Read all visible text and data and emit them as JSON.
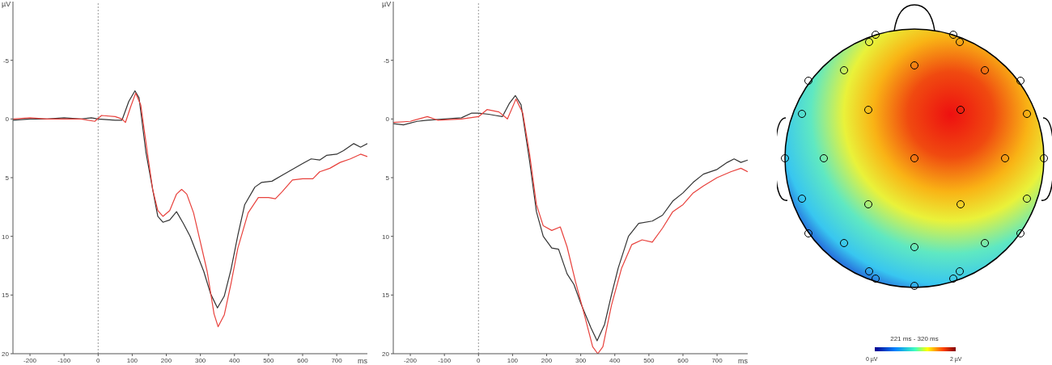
{
  "chart_data": [
    {
      "type": "line",
      "xlabel": "ms",
      "ylabel": "µV",
      "xlim": [
        -250,
        790
      ],
      "ylim": [
        20,
        -10
      ],
      "xticks": [
        -200,
        -100,
        0,
        100,
        200,
        300,
        400,
        500,
        600,
        700
      ],
      "yticks": [
        -5,
        0,
        5,
        10,
        15,
        20
      ],
      "grid": false,
      "legend": false,
      "marker": "none",
      "line_style": "solid",
      "ref_lines": [
        {
          "axis": "x",
          "value": 0,
          "color": "#999999",
          "line_style": "dotted"
        }
      ],
      "series": [
        {
          "color": "#333333",
          "x": [
            -250,
            -200,
            -150,
            -100,
            -50,
            -20,
            0,
            50,
            70,
            90,
            108,
            120,
            140,
            160,
            175,
            190,
            210,
            230,
            250,
            270,
            290,
            310,
            330,
            350,
            370,
            390,
            410,
            430,
            460,
            480,
            510,
            540,
            570,
            600,
            625,
            650,
            670,
            700,
            720,
            750,
            770,
            790
          ],
          "values": [
            0.1,
            0,
            0,
            -0.1,
            0,
            -0.1,
            0,
            0.1,
            0.1,
            -1.5,
            -2.4,
            -1.8,
            2.8,
            6,
            8.3,
            8.8,
            8.6,
            7.9,
            8.9,
            10,
            11.5,
            13,
            14.9,
            16.1,
            15.1,
            12.8,
            9.9,
            7.3,
            5.8,
            5.4,
            5.3,
            4.8,
            4.3,
            3.8,
            3.4,
            3.5,
            3.1,
            3,
            2.7,
            2.1,
            2.4,
            2.1
          ]
        },
        {
          "color": "#e8413c",
          "x": [
            -250,
            -200,
            -150,
            -100,
            -50,
            -10,
            10,
            50,
            70,
            80,
            95,
            110,
            125,
            145,
            160,
            175,
            190,
            210,
            230,
            245,
            260,
            280,
            300,
            320,
            340,
            352,
            370,
            390,
            410,
            440,
            470,
            500,
            520,
            540,
            570,
            600,
            630,
            650,
            680,
            710,
            740,
            770,
            790
          ],
          "values": [
            0,
            -0.1,
            0,
            0,
            0,
            0.2,
            -0.3,
            -0.2,
            0,
            0.3,
            -1,
            -2.2,
            -1.2,
            3,
            6,
            7.8,
            8.3,
            7.8,
            6.4,
            6,
            6.4,
            8,
            10.5,
            13,
            16.6,
            17.7,
            16.7,
            14,
            11,
            8,
            6.7,
            6.7,
            6.8,
            6.2,
            5.2,
            5.1,
            5.1,
            4.5,
            4.2,
            3.7,
            3.4,
            3,
            3.2
          ]
        }
      ]
    },
    {
      "type": "line",
      "xlabel": "ms",
      "ylabel": "µV",
      "xlim": [
        -250,
        790
      ],
      "ylim": [
        20,
        -10
      ],
      "xticks": [
        -200,
        -100,
        0,
        100,
        200,
        300,
        400,
        500,
        600,
        700
      ],
      "yticks": [
        -5,
        0,
        5,
        10,
        15,
        20
      ],
      "grid": false,
      "legend": false,
      "marker": "none",
      "line_style": "solid",
      "ref_lines": [
        {
          "axis": "x",
          "value": 0,
          "color": "#999999",
          "line_style": "dotted"
        }
      ],
      "series": [
        {
          "color": "#333333",
          "x": [
            -250,
            -220,
            -180,
            -150,
            -100,
            -50,
            -20,
            0,
            30,
            50,
            70,
            90,
            108,
            125,
            150,
            170,
            190,
            215,
            235,
            260,
            280,
            300,
            330,
            348,
            370,
            390,
            410,
            440,
            470,
            510,
            540,
            570,
            600,
            630,
            660,
            700,
            730,
            750,
            770,
            790
          ],
          "values": [
            0.4,
            0.5,
            0.2,
            0.1,
            0,
            -0.1,
            -0.5,
            -0.5,
            -0.4,
            -0.3,
            -0.2,
            -1.3,
            -2,
            -1.2,
            3.6,
            7.9,
            10,
            11,
            11.1,
            13.2,
            14.1,
            15.7,
            17.8,
            18.9,
            17.5,
            15,
            12.7,
            10,
            8.9,
            8.7,
            8.2,
            7,
            6.3,
            5.4,
            4.7,
            4.3,
            3.7,
            3.4,
            3.7,
            3.5
          ]
        },
        {
          "color": "#e8413c",
          "x": [
            -250,
            -200,
            -150,
            -120,
            -50,
            0,
            25,
            60,
            85,
            110,
            130,
            150,
            170,
            190,
            215,
            240,
            260,
            285,
            310,
            335,
            350,
            365,
            390,
            420,
            450,
            480,
            510,
            540,
            570,
            600,
            630,
            660,
            700,
            740,
            770,
            790
          ],
          "values": [
            0.3,
            0.2,
            -0.2,
            0.1,
            0,
            -0.2,
            -0.8,
            -0.6,
            0,
            -1.7,
            -0.5,
            3,
            7.3,
            9.1,
            9.5,
            9.2,
            10.9,
            13.9,
            16.6,
            19.4,
            20,
            19.4,
            15.9,
            12.7,
            10.7,
            10.3,
            10.5,
            9.3,
            7.9,
            7.3,
            6.3,
            5.7,
            5,
            4.5,
            4.2,
            4.5
          ]
        }
      ]
    },
    {
      "type": "other",
      "annotations": [
        "221 ms - 320 ms",
        "0 µV",
        "2 µV"
      ]
    }
  ]
}
